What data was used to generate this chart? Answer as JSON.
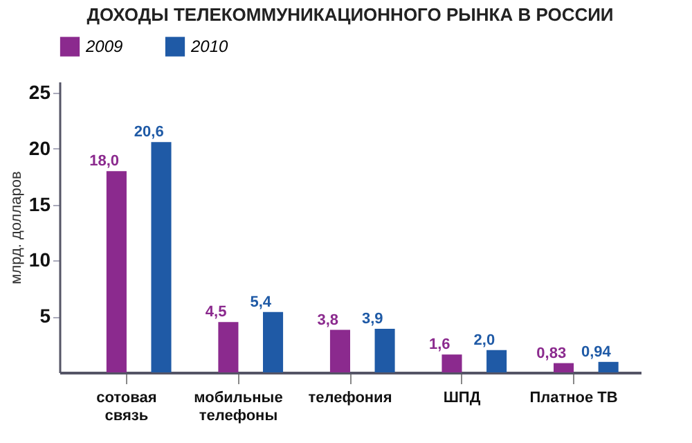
{
  "chart_data": {
    "type": "bar",
    "title": "ДОХОДЫ ТЕЛЕКОММУНИКАЦИОННОГО РЫНКА В РОССИИ",
    "ylabel": "млрд. долларов",
    "categories": [
      "сотовая связь",
      "мобильные телефоны",
      "телефония",
      "ШПД",
      "Платное ТВ"
    ],
    "series": [
      {
        "name": "2009",
        "color": "#8b2a8e",
        "values": [
          18.0,
          4.5,
          3.8,
          1.6,
          0.83
        ],
        "value_labels": [
          "18,0",
          "4,5",
          "3,8",
          "1,6",
          "0,83"
        ]
      },
      {
        "name": "2010",
        "color": "#1f5aa6",
        "values": [
          20.6,
          5.4,
          3.9,
          2.0,
          0.94
        ],
        "value_labels": [
          "20,6",
          "5,4",
          "3,9",
          "2,0",
          "0,94"
        ]
      }
    ],
    "ylim": [
      0,
      26
    ],
    "yticks": [
      5,
      10,
      15,
      20,
      25
    ],
    "legend": "top",
    "grid": false
  }
}
